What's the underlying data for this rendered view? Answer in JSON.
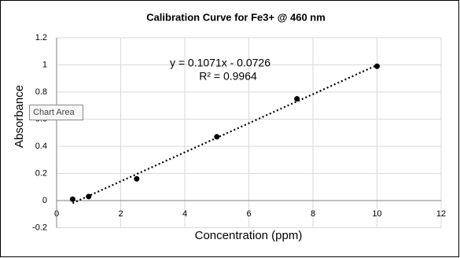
{
  "chart_data": {
    "type": "scatter",
    "title": "Calibration Curve for  Fe3+ @ 460 nm",
    "x_label": "Concentration (ppm)",
    "y_label": "Absorbance",
    "x": [
      0.5,
      1,
      2.5,
      5,
      7.5,
      10
    ],
    "values": [
      0.01,
      0.03,
      0.16,
      0.47,
      0.75,
      0.99
    ],
    "color": "#000000",
    "xlim": [
      0,
      12
    ],
    "xticks": [
      0,
      2,
      4,
      6,
      8,
      10,
      12
    ],
    "ylim": [
      -0.2,
      1.2
    ],
    "yticks": [
      -0.2,
      0,
      0.2,
      0.4,
      0.6,
      0.8,
      1,
      1.2
    ],
    "grid": true,
    "trendline": {
      "slope": 0.1071,
      "intercept": -0.0726,
      "equation": "y = 0.1071x - 0.0726",
      "r_squared": "R² = 0.9964"
    },
    "tooltip": "Chart Area"
  }
}
